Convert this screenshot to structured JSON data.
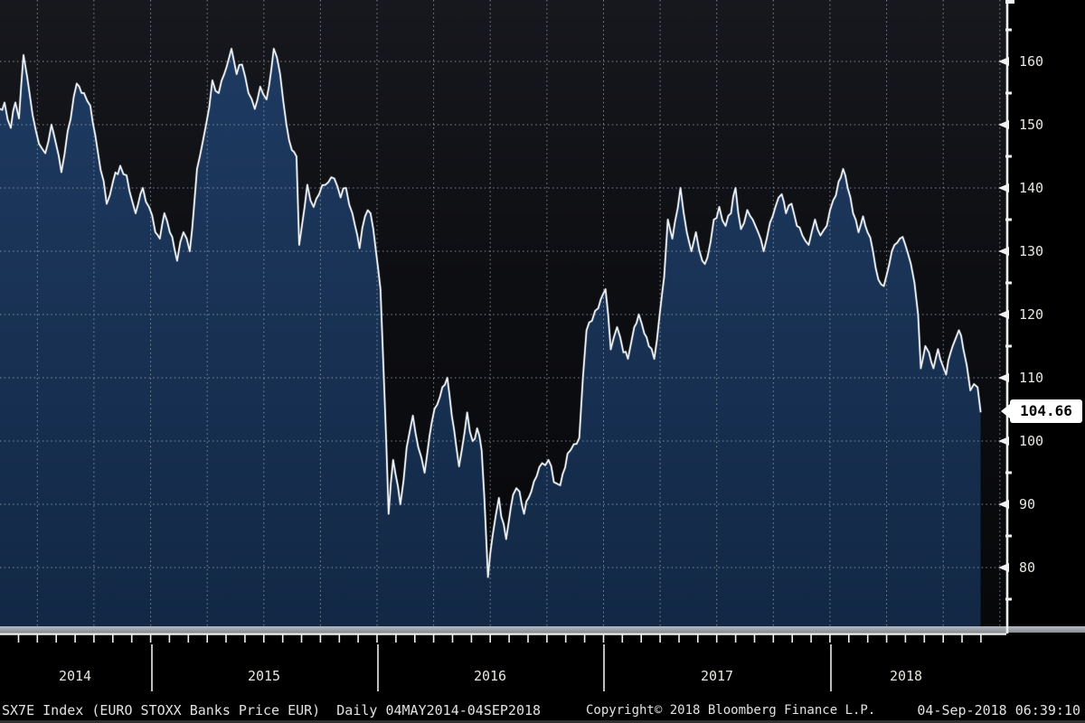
{
  "chart_data": {
    "type": "area",
    "title": "SX7E Index (EURO STOXX Banks Price EUR)",
    "subtitle": "Daily 04MAY2014-04SEP2018",
    "x_domain_years": [
      2014.335,
      2018.675
    ],
    "ylim": [
      80,
      160
    ],
    "y_ticks": [
      160,
      150,
      140,
      130,
      120,
      110,
      100,
      90,
      80
    ],
    "y_minor_ticks": [
      165,
      155,
      145,
      135,
      125,
      115,
      105,
      95,
      85,
      75
    ],
    "grid": "dotted-quarterly-and-10pt",
    "legend_position": "none",
    "last_price": 104.66,
    "series": [
      {
        "name": "SX7E Index (EURO STOXX Banks Price EUR)",
        "points": [
          [
            2014.335,
            152.5
          ],
          [
            2014.355,
            153.5
          ],
          [
            2014.383,
            149.5
          ],
          [
            2014.403,
            153.5
          ],
          [
            2014.419,
            151
          ],
          [
            2014.439,
            161
          ],
          [
            2014.455,
            157.5
          ],
          [
            2014.479,
            151.5
          ],
          [
            2014.507,
            147
          ],
          [
            2014.535,
            145.5
          ],
          [
            2014.562,
            150
          ],
          [
            2014.582,
            147
          ],
          [
            2014.606,
            142.5
          ],
          [
            2014.634,
            149
          ],
          [
            2014.674,
            156.5
          ],
          [
            2014.706,
            155
          ],
          [
            2014.734,
            153
          ],
          [
            2014.766,
            146
          ],
          [
            2014.806,
            137.5
          ],
          [
            2014.834,
            141
          ],
          [
            2014.866,
            143.5
          ],
          [
            2014.894,
            142
          ],
          [
            2014.934,
            136
          ],
          [
            2014.966,
            140
          ],
          [
            2014.993,
            137
          ],
          [
            2015.021,
            133
          ],
          [
            2015.041,
            132
          ],
          [
            2015.061,
            136
          ],
          [
            2015.085,
            133
          ],
          [
            2015.117,
            128.5
          ],
          [
            2015.145,
            133
          ],
          [
            2015.173,
            130
          ],
          [
            2015.205,
            143
          ],
          [
            2015.245,
            150
          ],
          [
            2015.273,
            157
          ],
          [
            2015.301,
            155
          ],
          [
            2015.325,
            158
          ],
          [
            2015.357,
            162
          ],
          [
            2015.38,
            158
          ],
          [
            2015.404,
            159.5
          ],
          [
            2015.432,
            155
          ],
          [
            2015.46,
            152.5
          ],
          [
            2015.484,
            156
          ],
          [
            2015.512,
            154
          ],
          [
            2015.544,
            162
          ],
          [
            2015.572,
            158
          ],
          [
            2015.6,
            150
          ],
          [
            2015.624,
            146
          ],
          [
            2015.644,
            145
          ],
          [
            2015.656,
            131
          ],
          [
            2015.668,
            134
          ],
          [
            2015.692,
            140.5
          ],
          [
            2015.72,
            137
          ],
          [
            2015.744,
            139
          ],
          [
            2015.772,
            140.5
          ],
          [
            2015.811,
            141.5
          ],
          [
            2015.839,
            138.5
          ],
          [
            2015.863,
            140
          ],
          [
            2015.891,
            136
          ],
          [
            2015.923,
            130.5
          ],
          [
            2015.947,
            135.5
          ],
          [
            2015.971,
            136
          ],
          [
            2015.995,
            130
          ],
          [
            2016.015,
            124
          ],
          [
            2016.031,
            109
          ],
          [
            2016.051,
            88.5
          ],
          [
            2016.071,
            97
          ],
          [
            2016.103,
            90
          ],
          [
            2016.131,
            99
          ],
          [
            2016.158,
            104
          ],
          [
            2016.182,
            99
          ],
          [
            2016.21,
            95
          ],
          [
            2016.242,
            103
          ],
          [
            2016.278,
            107
          ],
          [
            2016.31,
            110
          ],
          [
            2016.33,
            104
          ],
          [
            2016.362,
            96
          ],
          [
            2016.398,
            104.5
          ],
          [
            2016.422,
            100
          ],
          [
            2016.442,
            102
          ],
          [
            2016.462,
            98.5
          ],
          [
            2016.474,
            91
          ],
          [
            2016.49,
            78.5
          ],
          [
            2016.51,
            85
          ],
          [
            2016.538,
            91
          ],
          [
            2016.57,
            84.5
          ],
          [
            2016.601,
            91.5
          ],
          [
            2016.629,
            92
          ],
          [
            2016.649,
            88.5
          ],
          [
            2016.681,
            92
          ],
          [
            2016.729,
            96.5
          ],
          [
            2016.757,
            97
          ],
          [
            2016.781,
            93.5
          ],
          [
            2016.809,
            93
          ],
          [
            2016.841,
            98
          ],
          [
            2016.869,
            99.5
          ],
          [
            2016.893,
            100.5
          ],
          [
            2016.909,
            110
          ],
          [
            2016.925,
            117.5
          ],
          [
            2016.949,
            119
          ],
          [
            2016.977,
            121
          ],
          [
            2017.009,
            124
          ],
          [
            2017.032,
            114.5
          ],
          [
            2017.06,
            118
          ],
          [
            2017.088,
            114
          ],
          [
            2017.108,
            113
          ],
          [
            2017.136,
            118
          ],
          [
            2017.156,
            120
          ],
          [
            2017.18,
            117
          ],
          [
            2017.2,
            115
          ],
          [
            2017.224,
            113
          ],
          [
            2017.248,
            120
          ],
          [
            2017.268,
            126
          ],
          [
            2017.284,
            135
          ],
          [
            2017.304,
            132
          ],
          [
            2017.34,
            140
          ],
          [
            2017.368,
            133
          ],
          [
            2017.388,
            130
          ],
          [
            2017.408,
            133
          ],
          [
            2017.436,
            128.5
          ],
          [
            2017.459,
            129
          ],
          [
            2017.487,
            135
          ],
          [
            2017.511,
            137
          ],
          [
            2017.539,
            134
          ],
          [
            2017.563,
            136
          ],
          [
            2017.583,
            140
          ],
          [
            2017.607,
            133.5
          ],
          [
            2017.635,
            136.5
          ],
          [
            2017.659,
            135
          ],
          [
            2017.683,
            133
          ],
          [
            2017.707,
            130
          ],
          [
            2017.735,
            134.5
          ],
          [
            2017.759,
            137
          ],
          [
            2017.787,
            139
          ],
          [
            2017.806,
            136
          ],
          [
            2017.83,
            137.5
          ],
          [
            2017.854,
            134
          ],
          [
            2017.878,
            132.5
          ],
          [
            2017.906,
            131
          ],
          [
            2017.934,
            135
          ],
          [
            2017.958,
            132.5
          ],
          [
            2017.986,
            134
          ],
          [
            2018.014,
            138
          ],
          [
            2018.038,
            141
          ],
          [
            2018.058,
            143
          ],
          [
            2018.078,
            140
          ],
          [
            2018.102,
            136
          ],
          [
            2018.126,
            133
          ],
          [
            2018.146,
            135.5
          ],
          [
            2018.166,
            133
          ],
          [
            2018.19,
            130
          ],
          [
            2018.214,
            125.5
          ],
          [
            2018.238,
            124.5
          ],
          [
            2018.262,
            128
          ],
          [
            2018.285,
            131
          ],
          [
            2018.309,
            132
          ],
          [
            2018.333,
            131
          ],
          [
            2018.357,
            128
          ],
          [
            2018.373,
            125
          ],
          [
            2018.389,
            120
          ],
          [
            2018.401,
            111.5
          ],
          [
            2018.421,
            115
          ],
          [
            2018.437,
            114
          ],
          [
            2018.457,
            111.5
          ],
          [
            2018.477,
            114.5
          ],
          [
            2018.497,
            112
          ],
          [
            2018.513,
            110.5
          ],
          [
            2018.533,
            114
          ],
          [
            2018.553,
            116
          ],
          [
            2018.569,
            117.5
          ],
          [
            2018.589,
            114.5
          ],
          [
            2018.604,
            112
          ],
          [
            2018.62,
            108
          ],
          [
            2018.636,
            109
          ],
          [
            2018.652,
            108.5
          ],
          [
            2018.665,
            104.66
          ]
        ]
      }
    ]
  },
  "y_axis": {
    "labels": [
      "160",
      "150",
      "140",
      "130",
      "120",
      "110",
      "100",
      "90",
      "80"
    ]
  },
  "x_axis": {
    "year_labels": [
      "2014",
      "2015",
      "2016",
      "2017",
      "2018"
    ]
  },
  "price_marker": {
    "value": "104.66"
  },
  "footer": {
    "security_line": "SX7E Index (EURO STOXX Banks Price EUR)  Daily 04MAY2014-04SEP2018",
    "copyright": "Copyright© 2018 Bloomberg Finance L.P.",
    "timestamp": "04-Sep-2018 06:39:10"
  },
  "colors": {
    "area_fill_top": "#1e3a61",
    "area_fill_bottom": "#122845",
    "line": "#eef1f4",
    "line_shadow": "#6b7683",
    "grid": "#9aa1ac",
    "axis": "#f0f0f0",
    "label_text": "#e9e7e0",
    "marker_bg": "#ffffff",
    "marker_text": "#000000",
    "background": "#0b0c0f"
  }
}
